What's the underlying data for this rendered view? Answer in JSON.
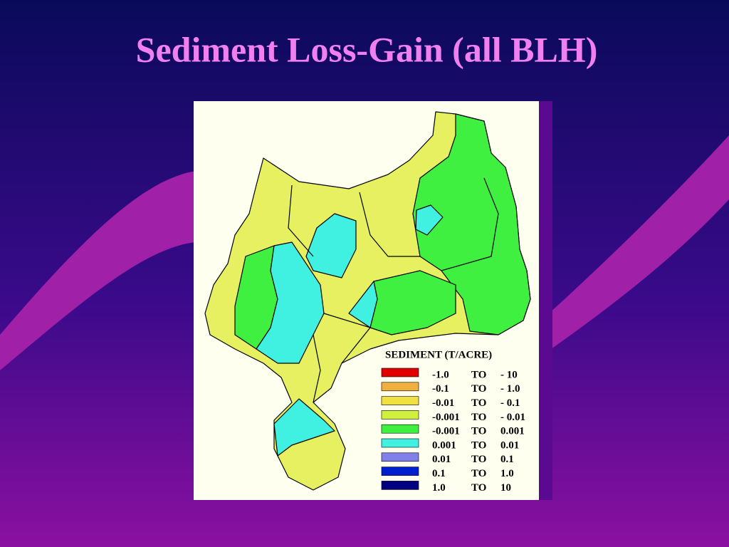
{
  "header": {
    "title": "Sediment Loss-Gain (all BLH)"
  },
  "legend": {
    "title": "SEDIMENT (T/ACRE)",
    "items": [
      {
        "from": "-1.0",
        "sep": "TO",
        "to": "- 10",
        "color": "#e00000"
      },
      {
        "from": "-0.1",
        "sep": "TO",
        "to": "- 1.0",
        "color": "#f0b040"
      },
      {
        "from": "-0.01",
        "sep": "TO",
        "to": "- 0.1",
        "color": "#f0e040"
      },
      {
        "from": "-0.001",
        "sep": "TO",
        "to": "- 0.01",
        "color": "#d0f040"
      },
      {
        "from": "-0.001",
        "sep": "TO",
        "to": "0.001",
        "color": "#40f040"
      },
      {
        "from": "0.001",
        "sep": "TO",
        "to": "0.01",
        "color": "#40f0e0"
      },
      {
        "from": "0.01",
        "sep": "TO",
        "to": "0.1",
        "color": "#8080e8"
      },
      {
        "from": "0.1",
        "sep": "TO",
        "to": "1.0",
        "color": "#0020d0"
      },
      {
        "from": "1.0",
        "sep": "TO",
        "to": "10",
        "color": "#000080"
      }
    ]
  }
}
